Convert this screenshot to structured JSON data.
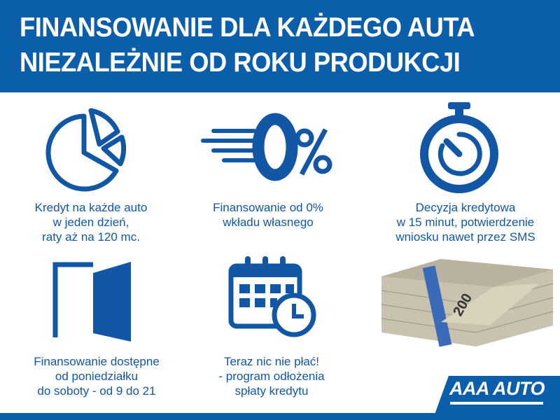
{
  "header": {
    "line1": "FINANSOWANIE DLA KAŻDEGO AUTA",
    "line2": "NIEZALEŻNIE OD ROKU PRODUKCJI"
  },
  "features": [
    {
      "icon": "pie-chart-icon",
      "lines": [
        "Kredyt na każde auto",
        "w jeden dzień,",
        "raty aż na 120 mc."
      ]
    },
    {
      "icon": "zero-percent-icon",
      "icon_text": "0%",
      "lines": [
        "Finansowanie od 0%",
        "wkładu własnego"
      ]
    },
    {
      "icon": "stopwatch-icon",
      "lines": [
        "Decyzja kredytowa",
        "w 15 minut, potwierdzenie",
        "wniosku nawet przez SMS"
      ]
    },
    {
      "icon": "open-door-icon",
      "lines": [
        "Finansowanie dostępne",
        "od poniedziałku",
        "do soboty - od 9 do 21"
      ]
    },
    {
      "icon": "calendar-clock-icon",
      "lines": [
        "Teraz nic nie płać!",
        "- program odłożenia",
        "spłaty kredytu"
      ]
    },
    {
      "icon": "money-stack-image",
      "banknote_value": "200"
    }
  ],
  "logo": {
    "text": "AAA AUTO"
  },
  "colors": {
    "brand_blue": "#0b5eaa",
    "text_blue": "#1257a6"
  }
}
